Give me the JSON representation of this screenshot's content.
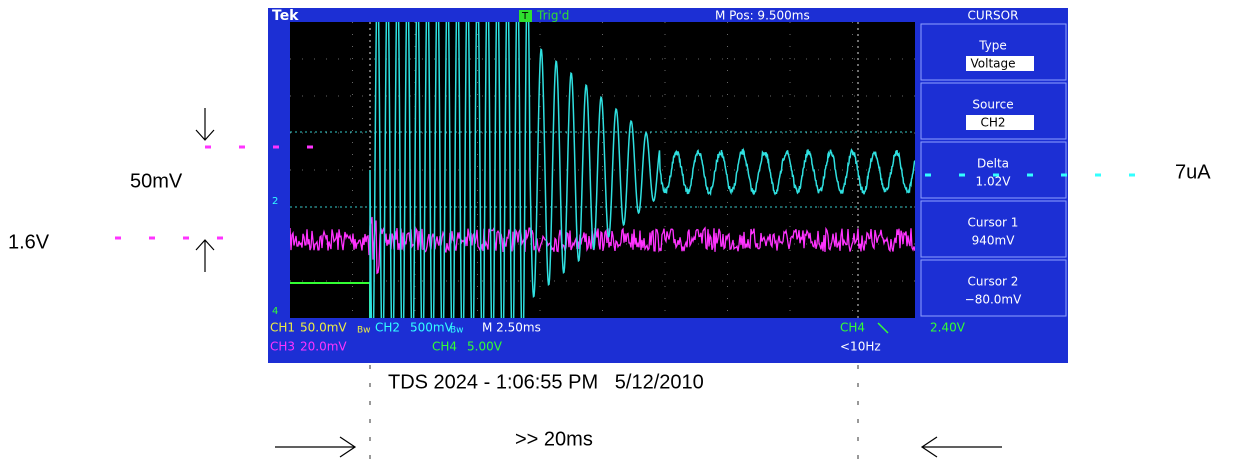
{
  "header": {
    "brand": "Tek",
    "trigger_icon": "T",
    "trigger_status": "Trig'd",
    "m_pos": "M Pos: 9.500ms",
    "menu_title": "CURSOR"
  },
  "menu": [
    {
      "label": "Type",
      "value": "Voltage"
    },
    {
      "label": "Source",
      "value": "CH2"
    },
    {
      "label": "Delta",
      "value": "1.02V"
    },
    {
      "label": "Cursor 1",
      "value": "940mV"
    },
    {
      "label": "Cursor 2",
      "value": "−80.0mV"
    }
  ],
  "markers": {
    "ch2": "2",
    "ch4": "4"
  },
  "status": {
    "ch1": "CH1",
    "ch1_scale": "50.0mV",
    "ch1_bw": "Bw",
    "ch2": "CH2",
    "ch2_scale": "500mV",
    "ch2_bw": "Bw",
    "time": "M 2.50ms",
    "trig_ch": "CH4",
    "trig_level": "2.40V",
    "ch3": "CH3",
    "ch3_scale": "20.0mV",
    "ch4": "CH4",
    "ch4_scale": "5.00V",
    "freq": "<10Hz"
  },
  "annotations": {
    "left_top": "50mV",
    "left_bottom": "1.6V",
    "right": "7uA",
    "caption": "TDS 2024 - 1:06:55 PM   5/12/2010",
    "interval": ">> 20ms"
  }
}
